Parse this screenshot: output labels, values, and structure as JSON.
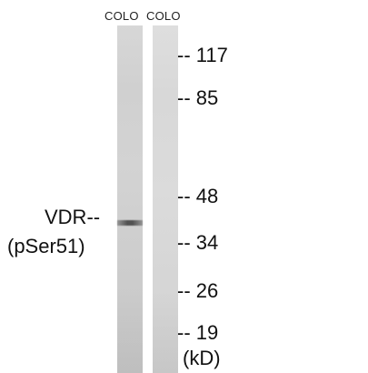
{
  "lanes": [
    {
      "label": "COLO"
    },
    {
      "label": "COLO"
    }
  ],
  "markers": [
    "-- 117",
    "-- 85",
    "-- 48",
    "-- 34",
    "-- 26",
    "-- 19"
  ],
  "unit": "(kD)",
  "band": {
    "name": "VDR--",
    "modification": "(pSer51)"
  },
  "colors": {
    "background": "#ffffff",
    "lane": "#d3d3d3",
    "band": "#333333",
    "text": "#111111"
  }
}
